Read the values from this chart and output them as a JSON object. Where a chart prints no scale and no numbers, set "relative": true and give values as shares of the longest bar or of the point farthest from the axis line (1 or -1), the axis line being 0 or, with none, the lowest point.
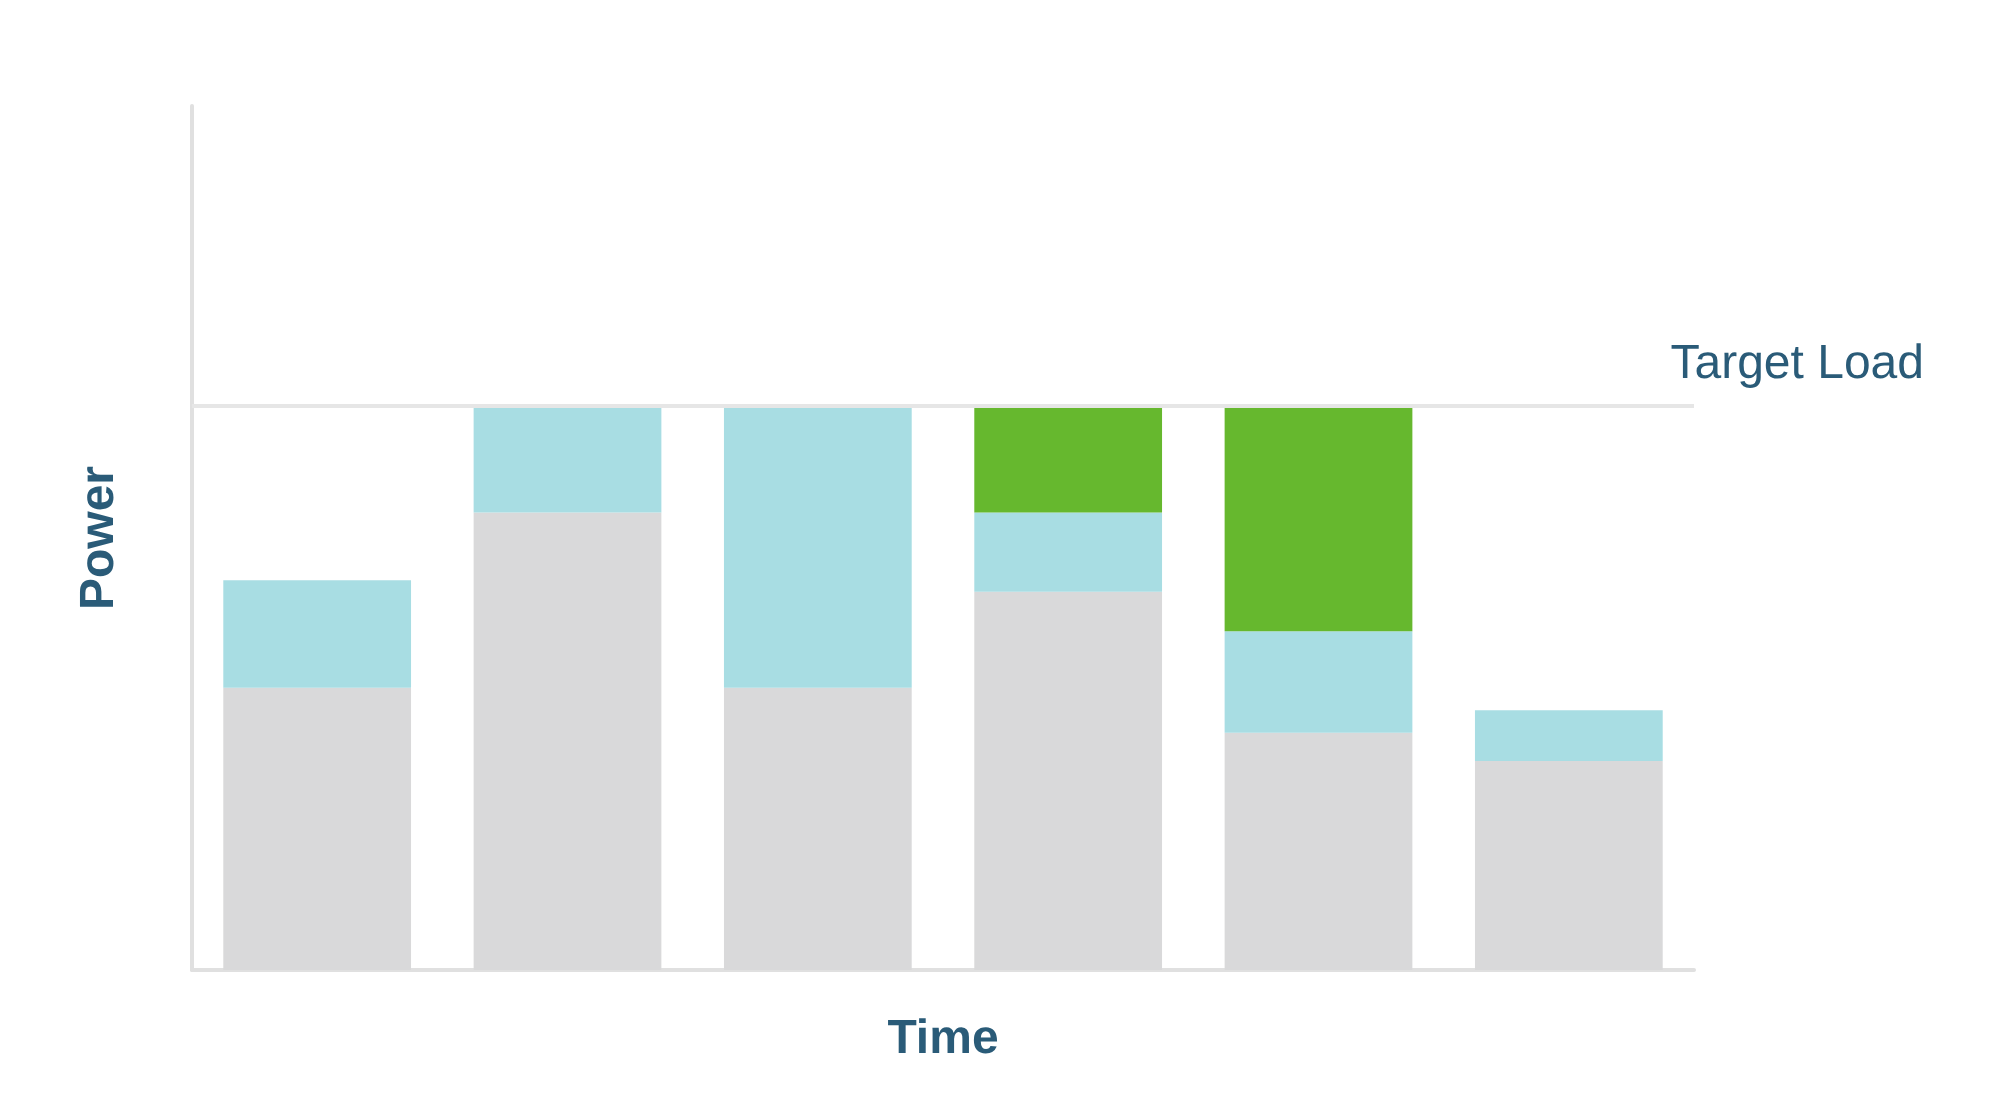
{
  "chart_data": {
    "type": "bar",
    "xlabel": "Time",
    "ylabel": "Power",
    "relative": true,
    "stacked": true,
    "categories": [
      null,
      null,
      null,
      null,
      null,
      null
    ],
    "series": [
      {
        "color": "#d9d9da",
        "values": [
          0.5,
          0.81,
          0.5,
          0.67,
          0.42,
          0.37
        ]
      },
      {
        "color": "#a8dde3",
        "values": [
          0.19,
          0.19,
          0.5,
          0.14,
          0.18,
          0.09
        ]
      },
      {
        "color": "#66b82e",
        "values": [
          0,
          0,
          0,
          0.19,
          0.4,
          0
        ]
      }
    ],
    "ref_lines": [
      {
        "axis": "y",
        "value": 1,
        "label": "Target Load",
        "color": "#e6e6e6"
      }
    ]
  }
}
